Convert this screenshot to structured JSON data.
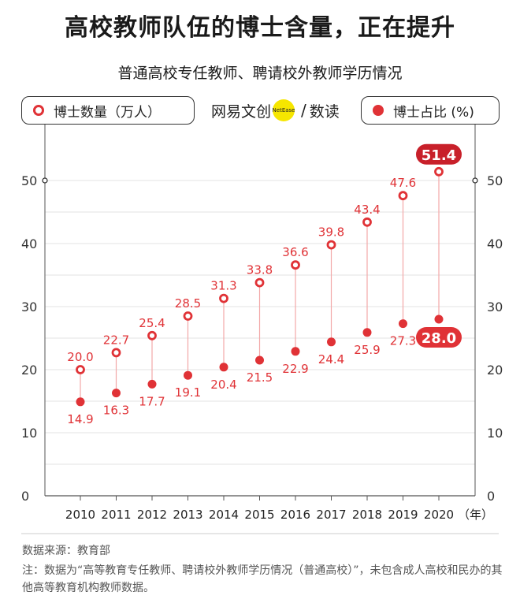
{
  "title": "高校教师队伍的博士含量，正在提升",
  "subtitle": "普通高校专任教师、聘请校外教师学历情况",
  "legend": {
    "count_label": "博士数量（万人）",
    "share_label": "博士占比 (%)"
  },
  "logo": {
    "brand": "网易文创",
    "circle_text": "NetEase",
    "separator": "/",
    "product": "数读"
  },
  "source": "数据来源：教育部",
  "note": "注：数据为“高等教育专任教师、聘请校外教师学历情况（普通高校）”，未包含成人高校和民办的其他高等教育机构教师数据。",
  "colors": {
    "accent": "#e03236",
    "stem": "#f2a8a8",
    "grid": "#e3e3e3",
    "axis": "#555555"
  },
  "chart_data": {
    "type": "line",
    "categories": [
      "2010",
      "2011",
      "2012",
      "2013",
      "2014",
      "2015",
      "2016",
      "2017",
      "2018",
      "2019",
      "2020"
    ],
    "x_unit": "（年）",
    "series": [
      {
        "name": "博士数量（万人）",
        "marker": "ring",
        "values": [
          20.0,
          22.7,
          25.4,
          28.5,
          31.3,
          33.8,
          36.6,
          39.8,
          43.4,
          47.6,
          51.4
        ]
      },
      {
        "name": "博士占比 (%)",
        "marker": "dot",
        "values": [
          14.9,
          16.3,
          17.7,
          19.1,
          20.4,
          21.5,
          22.9,
          24.4,
          25.9,
          27.3,
          28.0
        ]
      }
    ],
    "value_labels": {
      "count": [
        "20.0",
        "22.7",
        "25.4",
        "28.5",
        "31.3",
        "33.8",
        "36.6",
        "39.8",
        "43.4",
        "47.6",
        "51.4"
      ],
      "share": [
        "14.9",
        "16.3",
        "17.7",
        "19.1",
        "20.4",
        "21.5",
        "22.9",
        "24.4",
        "25.9",
        "27.3",
        "28.0"
      ]
    },
    "ylim": [
      0,
      55
    ],
    "yticks": [
      0,
      10,
      20,
      30,
      40,
      50
    ],
    "ytick_labels": [
      "0",
      "10",
      "20",
      "30",
      "40",
      "50"
    ],
    "grid": true,
    "highlight_last": true
  }
}
